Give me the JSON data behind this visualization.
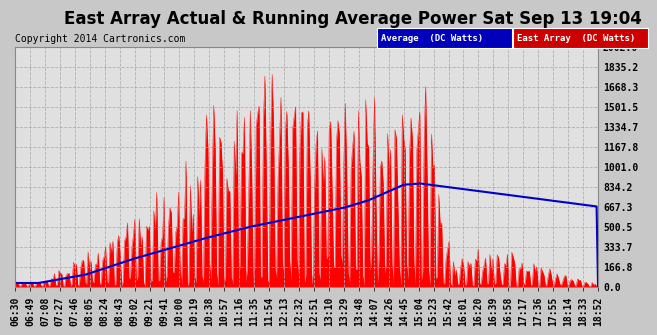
{
  "title": "East Array Actual & Running Average Power Sat Sep 13 19:04",
  "copyright": "Copyright 2014 Cartronics.com",
  "ylabel_values": [
    0.0,
    166.8,
    333.7,
    500.5,
    667.3,
    834.2,
    1001.0,
    1167.8,
    1334.7,
    1501.5,
    1668.3,
    1835.2,
    2002.0
  ],
  "ymax": 2002.0,
  "ymin": 0.0,
  "legend_avg_label": "Average  (DC Watts)",
  "legend_ea_label": "East Array  (DC Watts)",
  "avg_color": "#0000cc",
  "ea_color": "#ff0000",
  "fig_bg_color": "#d8d8d8",
  "plot_bg_color": "#e8e8e8",
  "title_color": "#000000",
  "grid_color": "#aaaaaa",
  "x_tick_labels": [
    "06:30",
    "06:49",
    "07:08",
    "07:27",
    "07:46",
    "08:05",
    "08:24",
    "08:43",
    "09:02",
    "09:21",
    "09:41",
    "10:00",
    "10:19",
    "10:38",
    "10:57",
    "11:16",
    "11:35",
    "11:54",
    "12:13",
    "12:32",
    "12:51",
    "13:10",
    "13:29",
    "13:48",
    "14:07",
    "14:26",
    "14:45",
    "15:04",
    "15:23",
    "15:42",
    "16:01",
    "16:20",
    "16:39",
    "16:58",
    "17:17",
    "17:36",
    "17:55",
    "18:14",
    "18:33",
    "18:52"
  ],
  "num_points": 400,
  "title_fontsize": 12,
  "tick_fontsize": 7,
  "copyright_fontsize": 7,
  "legend_avg_bg": "#0000bb",
  "legend_ea_bg": "#cc0000"
}
